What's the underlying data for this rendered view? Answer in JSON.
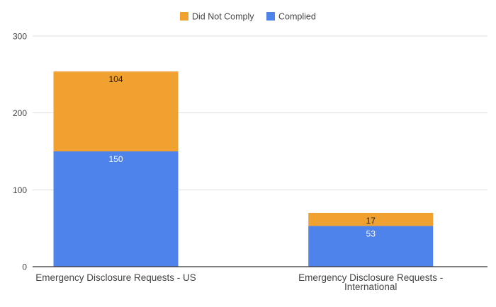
{
  "chart_data": {
    "type": "bar",
    "stacked": true,
    "categories": [
      "Emergency Disclosure Requests - US",
      "Emergency Disclosure Requests - International"
    ],
    "category_label_lines": [
      [
        "Emergency Disclosure Requests - US"
      ],
      [
        "Emergency Disclosure Requests -",
        "International"
      ]
    ],
    "series": [
      {
        "name": "Complied",
        "values": [
          150,
          53
        ],
        "color": "#4f83ec"
      },
      {
        "name": "Did Not Comply",
        "values": [
          104,
          17
        ],
        "color": "#f0a12f"
      }
    ],
    "legend_order": [
      "Did Not Comply",
      "Complied"
    ],
    "legend_position": "top",
    "ylim": [
      0,
      300
    ],
    "yticks": [
      0,
      100,
      200,
      300
    ],
    "grid": true,
    "title": "",
    "xlabel": "",
    "ylabel": ""
  }
}
